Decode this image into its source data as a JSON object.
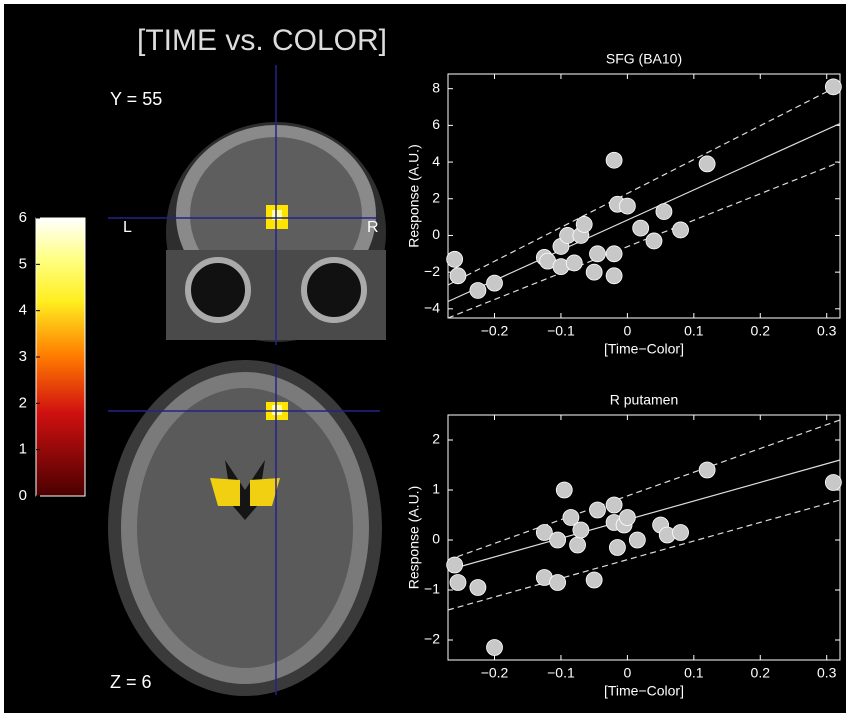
{
  "title": "[TIME vs. COLOR]",
  "brain": {
    "coronal_label": "Y = 55",
    "left": "L",
    "right": "R",
    "axial_label": "Z = 6"
  },
  "colorbar": {
    "lim": [
      0,
      6
    ],
    "ticks": [
      0,
      1,
      2,
      3,
      4,
      5,
      6
    ]
  },
  "chart_data": [
    {
      "type": "scatter",
      "title": "SFG (BA10)",
      "xlabel": "[Time−Color]",
      "ylabel": "Response (A.U.)",
      "color": "#c8c8c8",
      "x": [
        -0.26,
        -0.255,
        -0.225,
        -0.2,
        -0.125,
        -0.12,
        -0.1,
        -0.1,
        -0.09,
        -0.08,
        -0.07,
        -0.065,
        -0.05,
        -0.045,
        -0.02,
        -0.02,
        -0.02,
        -0.015,
        0,
        0.02,
        0.04,
        0.055,
        0.08,
        0.12,
        0.31
      ],
      "values": [
        -1.3,
        -2.2,
        -3.0,
        -2.6,
        -1.2,
        -1.4,
        -1.7,
        -0.6,
        0,
        -1.5,
        0,
        0.6,
        -2.0,
        -1.0,
        -1.0,
        -2.2,
        4.1,
        1.7,
        1.6,
        0.4,
        -0.3,
        1.3,
        0.3,
        3.9,
        8.1
      ],
      "lines": [
        {
          "style": "solid",
          "x": [
            -0.27,
            0.32
          ],
          "values": [
            -3.6,
            6.1
          ]
        },
        {
          "style": "dashed",
          "x": [
            -0.27,
            0.32
          ],
          "values": [
            -2.7,
            8.2
          ]
        },
        {
          "style": "dashed",
          "x": [
            -0.27,
            0.32
          ],
          "values": [
            -4.5,
            4.0
          ]
        }
      ],
      "xlim": [
        -0.27,
        0.32
      ],
      "ylim": [
        -4.5,
        8.8
      ],
      "xticks": [
        -0.2,
        -0.1,
        0,
        0.1,
        0.2,
        0.3
      ],
      "yticks": [
        -4,
        -2,
        0,
        2,
        4,
        6,
        8
      ]
    },
    {
      "type": "scatter",
      "title": "R putamen",
      "xlabel": "[Time−Color]",
      "ylabel": "Response (A.U.)",
      "color": "#c8c8c8",
      "x": [
        -0.26,
        -0.255,
        -0.225,
        -0.2,
        -0.125,
        -0.125,
        -0.105,
        -0.105,
        -0.095,
        -0.085,
        -0.075,
        -0.07,
        -0.05,
        -0.045,
        -0.02,
        -0.02,
        -0.015,
        -0.005,
        0,
        0.015,
        0.05,
        0.06,
        0.08,
        0.12,
        0.31
      ],
      "values": [
        -0.5,
        -0.85,
        -0.95,
        -2.15,
        0.15,
        -0.75,
        -0.85,
        0,
        1.0,
        0.45,
        -0.1,
        0.2,
        -0.8,
        0.6,
        0.7,
        0.35,
        -0.15,
        0.3,
        0.45,
        0,
        0.3,
        0.1,
        0.15,
        1.4,
        1.15
      ],
      "lines": [
        {
          "style": "solid",
          "x": [
            -0.27,
            0.32
          ],
          "values": [
            -0.6,
            1.6
          ]
        },
        {
          "style": "dashed",
          "x": [
            -0.27,
            0.32
          ],
          "values": [
            -0.4,
            2.4
          ]
        },
        {
          "style": "dashed",
          "x": [
            -0.27,
            0.32
          ],
          "values": [
            -1.4,
            0.8
          ]
        }
      ],
      "xlim": [
        -0.27,
        0.32
      ],
      "ylim": [
        -2.4,
        2.5
      ],
      "xticks": [
        -0.2,
        -0.1,
        0,
        0.1,
        0.2,
        0.3
      ],
      "yticks": [
        -2,
        -1,
        0,
        1,
        2
      ]
    }
  ]
}
